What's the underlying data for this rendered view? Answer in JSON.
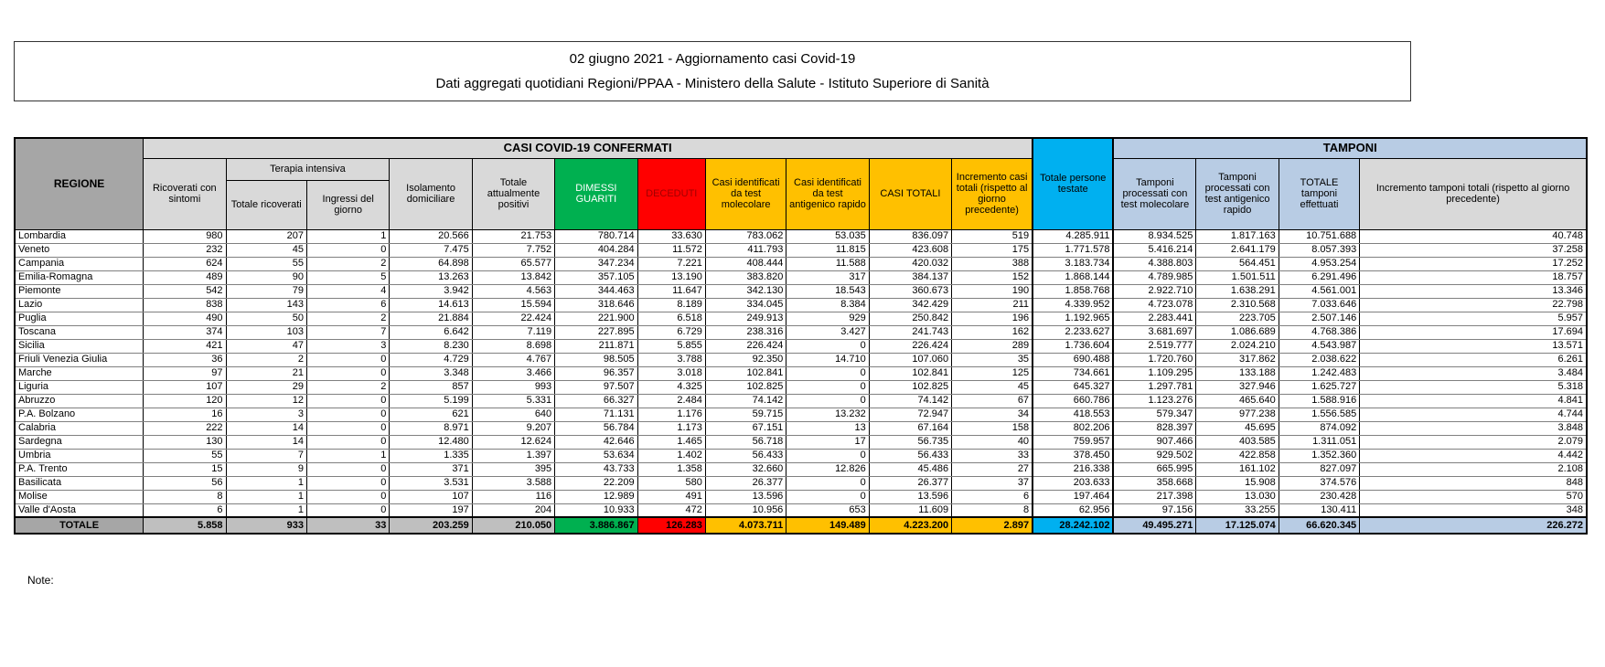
{
  "title": {
    "line1": "02 giugno 2021 - Aggiornamento casi Covid-19",
    "line2": "Dati aggregati quotidiani Regioni/PPAA - Ministero della Salute - Istituto Superiore di Sanità"
  },
  "note_label": "Note:",
  "colors": {
    "green": "#00b050",
    "red": "#ff0000",
    "yellow": "#ffc000",
    "cyan": "#00b0f0",
    "light_blue": "#b8cce4",
    "light_gray": "#d9d9d9",
    "header_gray": "#a6a6a6",
    "total_gray": "#bfbfbf"
  },
  "table": {
    "region_header": "REGIONE",
    "groups": {
      "confirmed": "CASI COVID-19 CONFERMATI",
      "terapia": "Terapia intensiva",
      "tamponi": "TAMPONI"
    },
    "columns": [
      "Ricoverati con sintomi",
      "Totale ricoverati",
      "Ingressi del giorno",
      "Isolamento domiciliare",
      "Totale attualmente positivi",
      "DIMESSI GUARITI",
      "DECEDUTI",
      "Casi identificati da test molecolare",
      "Casi identificati da test antigenico rapido",
      "CASI TOTALI",
      "Incremento casi totali (rispetto al giorno precedente)",
      "Totale persone testate",
      "Tamponi processati con test molecolare",
      "Tamponi processati con test antigenico rapido",
      "TOTALE tamponi effettuati",
      "Incremento tamponi totali (rispetto al giorno precedente)"
    ],
    "rows": [
      {
        "region": "Lombardia",
        "values": [
          "980",
          "207",
          "1",
          "20.566",
          "21.753",
          "780.714",
          "33.630",
          "783.062",
          "53.035",
          "836.097",
          "519",
          "4.285.911",
          "8.934.525",
          "1.817.163",
          "10.751.688",
          "40.748"
        ]
      },
      {
        "region": "Veneto",
        "values": [
          "232",
          "45",
          "0",
          "7.475",
          "7.752",
          "404.284",
          "11.572",
          "411.793",
          "11.815",
          "423.608",
          "175",
          "1.771.578",
          "5.416.214",
          "2.641.179",
          "8.057.393",
          "37.258"
        ]
      },
      {
        "region": "Campania",
        "values": [
          "624",
          "55",
          "2",
          "64.898",
          "65.577",
          "347.234",
          "7.221",
          "408.444",
          "11.588",
          "420.032",
          "388",
          "3.183.734",
          "4.388.803",
          "564.451",
          "4.953.254",
          "17.252"
        ]
      },
      {
        "region": "Emilia-Romagna",
        "values": [
          "489",
          "90",
          "5",
          "13.263",
          "13.842",
          "357.105",
          "13.190",
          "383.820",
          "317",
          "384.137",
          "152",
          "1.868.144",
          "4.789.985",
          "1.501.511",
          "6.291.496",
          "18.757"
        ]
      },
      {
        "region": "Piemonte",
        "values": [
          "542",
          "79",
          "4",
          "3.942",
          "4.563",
          "344.463",
          "11.647",
          "342.130",
          "18.543",
          "360.673",
          "190",
          "1.858.768",
          "2.922.710",
          "1.638.291",
          "4.561.001",
          "13.346"
        ]
      },
      {
        "region": "Lazio",
        "values": [
          "838",
          "143",
          "6",
          "14.613",
          "15.594",
          "318.646",
          "8.189",
          "334.045",
          "8.384",
          "342.429",
          "211",
          "4.339.952",
          "4.723.078",
          "2.310.568",
          "7.033.646",
          "22.798"
        ]
      },
      {
        "region": "Puglia",
        "values": [
          "490",
          "50",
          "2",
          "21.884",
          "22.424",
          "221.900",
          "6.518",
          "249.913",
          "929",
          "250.842",
          "196",
          "1.192.965",
          "2.283.441",
          "223.705",
          "2.507.146",
          "5.957"
        ]
      },
      {
        "region": "Toscana",
        "values": [
          "374",
          "103",
          "7",
          "6.642",
          "7.119",
          "227.895",
          "6.729",
          "238.316",
          "3.427",
          "241.743",
          "162",
          "2.233.627",
          "3.681.697",
          "1.086.689",
          "4.768.386",
          "17.694"
        ]
      },
      {
        "region": "Sicilia",
        "values": [
          "421",
          "47",
          "3",
          "8.230",
          "8.698",
          "211.871",
          "5.855",
          "226.424",
          "0",
          "226.424",
          "289",
          "1.736.604",
          "2.519.777",
          "2.024.210",
          "4.543.987",
          "13.571"
        ]
      },
      {
        "region": "Friuli Venezia Giulia",
        "values": [
          "36",
          "2",
          "0",
          "4.729",
          "4.767",
          "98.505",
          "3.788",
          "92.350",
          "14.710",
          "107.060",
          "35",
          "690.488",
          "1.720.760",
          "317.862",
          "2.038.622",
          "6.261"
        ]
      },
      {
        "region": "Marche",
        "values": [
          "97",
          "21",
          "0",
          "3.348",
          "3.466",
          "96.357",
          "3.018",
          "102.841",
          "0",
          "102.841",
          "125",
          "734.661",
          "1.109.295",
          "133.188",
          "1.242.483",
          "3.484"
        ]
      },
      {
        "region": "Liguria",
        "values": [
          "107",
          "29",
          "2",
          "857",
          "993",
          "97.507",
          "4.325",
          "102.825",
          "0",
          "102.825",
          "45",
          "645.327",
          "1.297.781",
          "327.946",
          "1.625.727",
          "5.318"
        ]
      },
      {
        "region": "Abruzzo",
        "values": [
          "120",
          "12",
          "0",
          "5.199",
          "5.331",
          "66.327",
          "2.484",
          "74.142",
          "0",
          "74.142",
          "67",
          "660.786",
          "1.123.276",
          "465.640",
          "1.588.916",
          "4.841"
        ]
      },
      {
        "region": "P.A. Bolzano",
        "values": [
          "16",
          "3",
          "0",
          "621",
          "640",
          "71.131",
          "1.176",
          "59.715",
          "13.232",
          "72.947",
          "34",
          "418.553",
          "579.347",
          "977.238",
          "1.556.585",
          "4.744"
        ]
      },
      {
        "region": "Calabria",
        "values": [
          "222",
          "14",
          "0",
          "8.971",
          "9.207",
          "56.784",
          "1.173",
          "67.151",
          "13",
          "67.164",
          "158",
          "802.206",
          "828.397",
          "45.695",
          "874.092",
          "3.848"
        ]
      },
      {
        "region": "Sardegna",
        "values": [
          "130",
          "14",
          "0",
          "12.480",
          "12.624",
          "42.646",
          "1.465",
          "56.718",
          "17",
          "56.735",
          "40",
          "759.957",
          "907.466",
          "403.585",
          "1.311.051",
          "2.079"
        ]
      },
      {
        "region": "Umbria",
        "values": [
          "55",
          "7",
          "1",
          "1.335",
          "1.397",
          "53.634",
          "1.402",
          "56.433",
          "0",
          "56.433",
          "33",
          "378.450",
          "929.502",
          "422.858",
          "1.352.360",
          "4.442"
        ]
      },
      {
        "region": "P.A. Trento",
        "values": [
          "15",
          "9",
          "0",
          "371",
          "395",
          "43.733",
          "1.358",
          "32.660",
          "12.826",
          "45.486",
          "27",
          "216.338",
          "665.995",
          "161.102",
          "827.097",
          "2.108"
        ]
      },
      {
        "region": "Basilicata",
        "values": [
          "56",
          "1",
          "0",
          "3.531",
          "3.588",
          "22.209",
          "580",
          "26.377",
          "0",
          "26.377",
          "37",
          "203.633",
          "358.668",
          "15.908",
          "374.576",
          "848"
        ]
      },
      {
        "region": "Molise",
        "values": [
          "8",
          "1",
          "0",
          "107",
          "116",
          "12.989",
          "491",
          "13.596",
          "0",
          "13.596",
          "6",
          "197.464",
          "217.398",
          "13.030",
          "230.428",
          "570"
        ]
      },
      {
        "region": "Valle d'Aosta",
        "values": [
          "6",
          "1",
          "0",
          "197",
          "204",
          "10.933",
          "472",
          "10.956",
          "653",
          "11.609",
          "8",
          "62.956",
          "97.156",
          "33.255",
          "130.411",
          "348"
        ]
      }
    ],
    "total": {
      "label": "TOTALE",
      "values": [
        "5.858",
        "933",
        "33",
        "203.259",
        "210.050",
        "3.886.867",
        "126.283",
        "4.073.711",
        "149.489",
        "4.223.200",
        "2.897",
        "28.242.102",
        "49.495.271",
        "17.125.074",
        "66.620.345",
        "226.272"
      ]
    }
  }
}
